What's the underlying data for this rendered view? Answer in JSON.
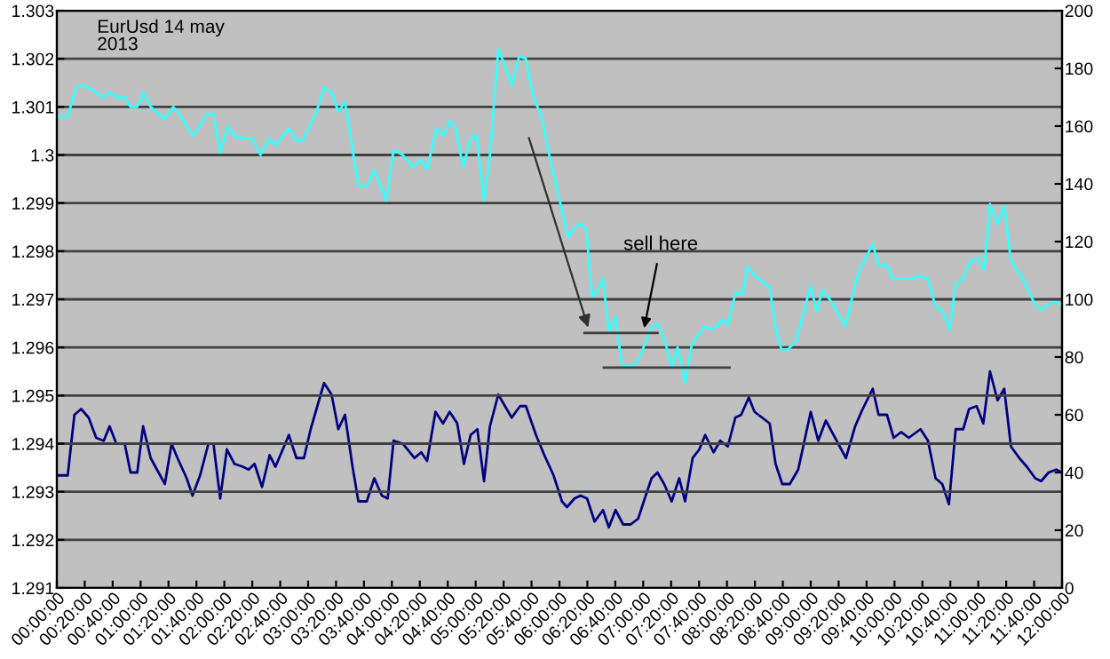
{
  "chart_data": {
    "type": "line",
    "title": "EurUsd 14 may\n2013",
    "xlim": [
      0,
      12
    ],
    "xticks": [
      {
        "value": 0,
        "label": "00:00:00"
      },
      {
        "value": 0.3333,
        "label": "00:20:00"
      },
      {
        "value": 0.6667,
        "label": "00:40:00"
      },
      {
        "value": 1,
        "label": "01:00:00"
      },
      {
        "value": 1.3333,
        "label": "01:20:00"
      },
      {
        "value": 1.6667,
        "label": "01:40:00"
      },
      {
        "value": 2,
        "label": "02:00:00"
      },
      {
        "value": 2.3333,
        "label": "02:20:00"
      },
      {
        "value": 2.6667,
        "label": "02:40:00"
      },
      {
        "value": 3,
        "label": "03:00:00"
      },
      {
        "value": 3.3333,
        "label": "03:20:00"
      },
      {
        "value": 3.6667,
        "label": "03:40:00"
      },
      {
        "value": 4,
        "label": "04:00:00"
      },
      {
        "value": 4.3333,
        "label": "04:20:00"
      },
      {
        "value": 4.6667,
        "label": "04:40:00"
      },
      {
        "value": 5,
        "label": "05:00:00"
      },
      {
        "value": 5.3333,
        "label": "05:20:00"
      },
      {
        "value": 5.6667,
        "label": "05:40:00"
      },
      {
        "value": 6,
        "label": "06:00:00"
      },
      {
        "value": 6.3333,
        "label": "06:20:00"
      },
      {
        "value": 6.6667,
        "label": "06:40:00"
      },
      {
        "value": 7,
        "label": "07:00:00"
      },
      {
        "value": 7.3333,
        "label": "07:20:00"
      },
      {
        "value": 7.6667,
        "label": "07:40:00"
      },
      {
        "value": 8,
        "label": "08:00:00"
      },
      {
        "value": 8.3333,
        "label": "08:20:00"
      },
      {
        "value": 8.6667,
        "label": "08:40:00"
      },
      {
        "value": 9,
        "label": "09:00:00"
      },
      {
        "value": 9.3333,
        "label": "09:20:00"
      },
      {
        "value": 9.6667,
        "label": "09:40:00"
      },
      {
        "value": 10,
        "label": "10:00:00"
      },
      {
        "value": 10.3333,
        "label": "10:20:00"
      },
      {
        "value": 10.6667,
        "label": "10:40:00"
      },
      {
        "value": 11,
        "label": "11:00:00"
      },
      {
        "value": 11.3333,
        "label": "11:20:00"
      },
      {
        "value": 11.6667,
        "label": "11:40:00"
      },
      {
        "value": 12,
        "label": "12:00:00"
      }
    ],
    "ylim": [
      1.291,
      1.303
    ],
    "yticks": [
      1.291,
      1.292,
      1.293,
      1.294,
      1.295,
      1.296,
      1.297,
      1.298,
      1.299,
      1.3,
      1.301,
      1.302,
      1.303
    ],
    "y2lim": [
      0,
      200
    ],
    "y2ticks": [
      0,
      20,
      40,
      60,
      80,
      100,
      120,
      140,
      160,
      180,
      200
    ],
    "grid": "y",
    "marker": "none",
    "line_style": "solid",
    "annotations": [
      {
        "text": "sell here",
        "x": 7.0,
        "y": 1.2963
      }
    ],
    "series": [
      {
        "color": "#33ffff",
        "x": [
          0,
          0.13,
          0.23,
          0.3,
          0.38,
          0.56,
          0.63,
          0.72,
          0.81,
          0.88,
          0.96,
          1.03,
          1.12,
          1.29,
          1.39,
          1.44,
          1.62,
          1.69,
          1.79,
          1.87,
          1.95,
          2.04,
          2.12,
          2.22,
          2.33,
          2.43,
          2.54,
          2.61,
          2.77,
          2.86,
          2.94,
          3.1,
          3.19,
          3.28,
          3.36,
          3.44,
          3.6,
          3.7,
          3.79,
          3.93,
          4.02,
          4.13,
          4.25,
          4.35,
          4.42,
          4.53,
          4.61,
          4.69,
          4.76,
          4.85,
          4.94,
          5.01,
          5.1,
          5.17,
          5.27,
          5.34,
          5.43,
          5.52,
          5.6,
          5.68,
          5.79,
          5.89,
          5.99,
          6.1,
          6.18,
          6.25,
          6.32,
          6.39,
          6.46,
          6.52,
          6.59,
          6.67,
          6.74,
          6.81,
          6.92,
          6.99,
          7.1,
          7.18,
          7.27,
          7.34,
          7.41,
          7.5,
          7.58,
          7.63,
          7.73,
          7.84,
          7.94,
          8.01,
          8.1,
          8.19,
          8.24,
          8.33,
          8.51,
          8.59,
          8.65,
          8.73,
          8.82,
          9.0,
          9.07,
          9.14,
          9.25,
          9.41,
          9.57,
          9.74,
          9.81,
          9.9,
          9.98,
          10.06,
          10.2,
          10.31,
          10.4,
          10.49,
          10.56,
          10.66,
          10.73,
          10.8,
          10.91,
          10.99,
          11.07,
          11.14,
          11.23,
          11.31,
          11.39,
          11.53,
          11.68,
          11.75,
          11.84,
          11.93,
          12.0
        ],
        "values": [
          1.3008,
          1.3008,
          1.3014,
          1.30145,
          1.3014,
          1.3012,
          1.3013,
          1.3012,
          1.3012,
          1.301,
          1.301,
          1.3013,
          1.301,
          1.30075,
          1.301,
          1.3009,
          1.3004,
          1.30055,
          1.30085,
          1.30085,
          1.30005,
          1.3006,
          1.3004,
          1.30035,
          1.30035,
          1.3,
          1.30035,
          1.3002,
          1.30055,
          1.3003,
          1.3003,
          1.3009,
          1.3014,
          1.3013,
          1.3009,
          1.3011,
          1.29935,
          1.29935,
          1.2997,
          1.29905,
          1.3001,
          1.3,
          1.29975,
          1.2999,
          1.2997,
          1.30055,
          1.3004,
          1.3007,
          1.30055,
          1.29975,
          1.30035,
          1.3004,
          1.29905,
          1.3,
          1.3022,
          1.3019,
          1.30145,
          1.30205,
          1.302,
          1.30126,
          1.30077,
          1.2999,
          1.29916,
          1.2983,
          1.29848,
          1.29858,
          1.29844,
          1.29706,
          1.29719,
          1.29743,
          1.29632,
          1.29663,
          1.29567,
          1.29559,
          1.29567,
          1.29594,
          1.29643,
          1.29649,
          1.29606,
          1.29559,
          1.296,
          1.29526,
          1.29606,
          1.29619,
          1.29643,
          1.29638,
          1.29657,
          1.29647,
          1.29712,
          1.29712,
          1.29768,
          1.29749,
          1.29725,
          1.29632,
          1.29596,
          1.29596,
          1.29612,
          1.29728,
          1.29675,
          1.29719,
          1.29694,
          1.29644,
          1.29756,
          1.29815,
          1.2977,
          1.29774,
          1.29743,
          1.29743,
          1.29743,
          1.29749,
          1.29743,
          1.29684,
          1.29679,
          1.29638,
          1.29733,
          1.29737,
          1.2978,
          1.29786,
          1.29762,
          1.29898,
          1.29857,
          1.29894,
          1.2978,
          1.29743,
          1.29688,
          1.29679,
          1.29691,
          1.29694,
          1.29688
        ]
      },
      {
        "color": "#000080",
        "axis": "y2",
        "x": [
          0,
          0.13,
          0.21,
          0.29,
          0.38,
          0.47,
          0.56,
          0.63,
          0.71,
          0.81,
          0.88,
          0.96,
          1.03,
          1.12,
          1.29,
          1.37,
          1.44,
          1.55,
          1.62,
          1.71,
          1.81,
          1.87,
          1.95,
          2.03,
          2.12,
          2.22,
          2.29,
          2.36,
          2.45,
          2.54,
          2.61,
          2.77,
          2.86,
          2.95,
          3.03,
          3.19,
          3.28,
          3.36,
          3.44,
          3.53,
          3.6,
          3.7,
          3.79,
          3.88,
          3.95,
          4.02,
          4.13,
          4.27,
          4.35,
          4.42,
          4.52,
          4.61,
          4.69,
          4.78,
          4.86,
          4.94,
          5.02,
          5.1,
          5.17,
          5.27,
          5.43,
          5.53,
          5.6,
          5.72,
          5.82,
          5.93,
          6.03,
          6.09,
          6.18,
          6.25,
          6.33,
          6.42,
          6.52,
          6.59,
          6.67,
          6.76,
          6.85,
          6.94,
          7.03,
          7.1,
          7.17,
          7.25,
          7.34,
          7.43,
          7.5,
          7.59,
          7.67,
          7.74,
          7.84,
          7.92,
          8.01,
          8.1,
          8.17,
          8.26,
          8.33,
          8.51,
          8.58,
          8.66,
          8.75,
          8.85,
          9.0,
          9.09,
          9.18,
          9.42,
          9.53,
          9.62,
          9.74,
          9.81,
          9.91,
          9.99,
          10.08,
          10.17,
          10.31,
          10.4,
          10.49,
          10.57,
          10.65,
          10.73,
          10.82,
          10.89,
          10.98,
          11.06,
          11.14,
          11.23,
          11.31,
          11.39,
          11.49,
          11.58,
          11.68,
          11.75,
          11.84,
          11.93,
          12.0
        ],
        "values": [
          39,
          39,
          60,
          62,
          59,
          52,
          51,
          56,
          50,
          50,
          40,
          40,
          56,
          45,
          36,
          50,
          45,
          38,
          32,
          39,
          50,
          50,
          31,
          48,
          43,
          42,
          41,
          43,
          35,
          46,
          42,
          53,
          45,
          45,
          55,
          71,
          67,
          55,
          60,
          42,
          30,
          30,
          38,
          32,
          31,
          51,
          50,
          45,
          47,
          44,
          61,
          57,
          61,
          57,
          43,
          53,
          55,
          37,
          56,
          67,
          59,
          63,
          63,
          53,
          46,
          39,
          30,
          28,
          31,
          32,
          31,
          23,
          27,
          21,
          27,
          22,
          22,
          24,
          32,
          38,
          40,
          36,
          30,
          38,
          30,
          45,
          48,
          53,
          47,
          51,
          49,
          59,
          60,
          66,
          61,
          57,
          43,
          36,
          36,
          41,
          61,
          51,
          58,
          45,
          56,
          62,
          69,
          60,
          60,
          52,
          54,
          52,
          55,
          51,
          38,
          36,
          29,
          55,
          55,
          62,
          63,
          57,
          75,
          65,
          69,
          49,
          45,
          42,
          38,
          37,
          40,
          41,
          40
        ]
      },
      {
        "color": "#404040",
        "x": [
          6.3,
          7.17
        ],
        "values": [
          1.2963,
          1.2963
        ]
      },
      {
        "color": "#404040",
        "x": [
          6.53,
          8.03
        ],
        "values": [
          1.29558,
          1.29558
        ]
      }
    ]
  }
}
